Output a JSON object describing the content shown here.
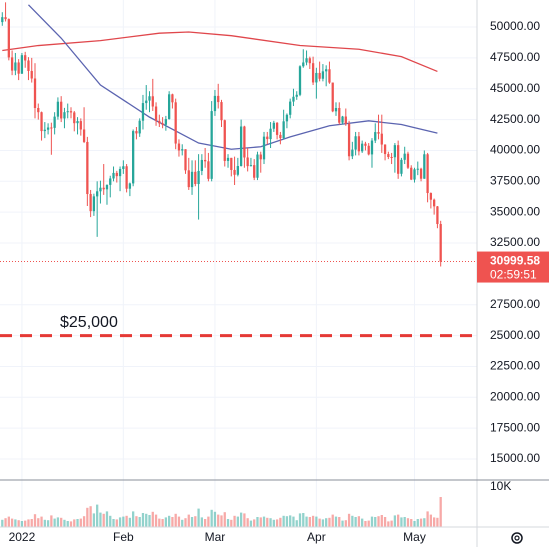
{
  "chart_data": {
    "type": "candlestick",
    "x": [
      -5,
      -4,
      -3,
      -2,
      -1,
      0,
      1,
      2,
      3,
      4,
      5,
      6,
      7,
      8,
      9,
      10,
      11,
      12,
      13,
      14,
      15,
      16,
      17,
      18,
      19,
      20,
      21,
      22,
      23,
      24,
      25,
      26,
      27,
      28,
      29,
      30,
      31,
      32,
      33,
      34,
      35,
      36,
      37,
      38,
      39,
      40,
      41,
      42,
      43,
      44,
      45,
      46,
      47,
      48,
      49,
      50,
      51,
      52,
      53,
      54,
      55,
      56,
      57,
      58,
      59,
      60,
      61,
      62,
      63,
      64,
      65,
      66,
      67,
      68,
      69,
      70,
      71,
      72,
      73,
      74,
      75,
      76,
      77,
      78,
      79,
      80,
      81,
      82,
      83,
      84,
      85,
      86,
      87,
      88,
      89,
      90,
      91,
      92,
      93,
      94,
      95,
      96,
      97,
      98,
      99,
      100,
      101,
      102,
      103,
      104,
      105,
      106,
      107,
      108,
      109,
      110,
      111,
      112,
      113,
      114,
      115,
      116,
      117,
      118,
      119,
      120,
      121,
      122,
      123,
      124,
      125,
      126,
      127,
      128,
      129
    ],
    "open": [
      50400,
      50800,
      50640,
      47540,
      46470,
      47130,
      46220,
      47720,
      47290,
      46440,
      45830,
      43440,
      43100,
      41570,
      41680,
      41860,
      41830,
      42740,
      43950,
      42590,
      43100,
      43180,
      43080,
      42210,
      42380,
      41700,
      40690,
      36470,
      35080,
      36280,
      36690,
      36980,
      36850,
      37210,
      37730,
      38180,
      37920,
      38500,
      38720,
      36900,
      37330,
      41570,
      41380,
      42410,
      43840,
      44040,
      44390,
      43560,
      42400,
      42200,
      42080,
      42540,
      44550,
      43900,
      40560,
      40000,
      40100,
      38390,
      37030,
      38270,
      37280,
      38340,
      39230,
      39120,
      37700,
      43190,
      44420,
      43920,
      42450,
      39150,
      39400,
      38420,
      38030,
      38740,
      41940,
      39430,
      38730,
      38810,
      37790,
      39670,
      39280,
      41120,
      40920,
      41760,
      42240,
      41260,
      41000,
      42360,
      42890,
      43960,
      44350,
      44510,
      46820,
      47130,
      47470,
      47070,
      45510,
      46280,
      45810,
      46410,
      46580,
      45500,
      43170,
      43440,
      42250,
      42750,
      42160,
      39530,
      40070,
      41150,
      39930,
      40550,
      40380,
      39680,
      40800,
      41490,
      41360,
      40480,
      39710,
      39470,
      39450,
      40430,
      38110,
      39240,
      39740,
      38600,
      37640,
      38470,
      38520,
      37710,
      39690,
      36550,
      36010,
      35470,
      34040
    ],
    "high": [
      51200,
      52000,
      50700,
      48100,
      47900,
      47400,
      47900,
      47990,
      47560,
      47500,
      47070,
      43800,
      43150,
      42300,
      42200,
      42250,
      43100,
      44300,
      44400,
      43450,
      43800,
      43500,
      43200,
      42700,
      42600,
      43500,
      41100,
      36800,
      36500,
      37500,
      37550,
      38900,
      37250,
      37950,
      38700,
      38350,
      38700,
      39200,
      38900,
      37400,
      41700,
      41900,
      42600,
      44500,
      45300,
      44800,
      45800,
      43900,
      42900,
      42700,
      42800,
      44800,
      44600,
      44200,
      40900,
      40500,
      40100,
      39400,
      39200,
      39200,
      39700,
      39700,
      40200,
      39800,
      44000,
      44900,
      45400,
      44100,
      42500,
      39700,
      39400,
      39500,
      39400,
      42500,
      42000,
      40200,
      39400,
      39300,
      39900,
      39900,
      41500,
      41500,
      42300,
      42400,
      42300,
      41500,
      43300,
      43000,
      44200,
      45000,
      44800,
      46900,
      48200,
      48100,
      47600,
      47600,
      46700,
      47200,
      47000,
      46900,
      47200,
      45500,
      43900,
      43900,
      42800,
      43400,
      42400,
      40700,
      41500,
      41500,
      40800,
      40700,
      40600,
      41000,
      42200,
      42900,
      42900,
      40500,
      39900,
      39800,
      40600,
      40800,
      39400,
      40300,
      39900,
      38800,
      38600,
      39100,
      38600,
      40000,
      39800,
      36600,
      36100,
      35500,
      34300
    ],
    "low": [
      50100,
      50450,
      47300,
      46100,
      46100,
      45700,
      46200,
      46700,
      45700,
      45500,
      42600,
      42500,
      40800,
      41000,
      41300,
      39650,
      41300,
      42500,
      42300,
      41800,
      42600,
      42600,
      41550,
      41300,
      41200,
      40600,
      35500,
      34600,
      34700,
      33000,
      35700,
      36400,
      35600,
      36200,
      37500,
      37400,
      36700,
      38100,
      36600,
      36300,
      37100,
      40900,
      41100,
      41700,
      43300,
      43100,
      43200,
      42000,
      41900,
      41800,
      41600,
      42500,
      43400,
      40100,
      39500,
      39600,
      38100,
      36800,
      36400,
      37100,
      34400,
      38000,
      38600,
      37500,
      37500,
      42800,
      43400,
      41900,
      38700,
      38600,
      37900,
      37200,
      37900,
      38700,
      38600,
      38300,
      38700,
      37600,
      37600,
      38200,
      38900,
      40500,
      40200,
      41500,
      40900,
      40500,
      40900,
      41800,
      42600,
      43600,
      44100,
      44400,
      46700,
      46900,
      46600,
      45300,
      44200,
      45600,
      45600,
      45200,
      45400,
      43100,
      42800,
      42100,
      42100,
      42000,
      39200,
      39300,
      39600,
      39600,
      39800,
      40000,
      39600,
      38600,
      40600,
      40900,
      39800,
      39200,
      39300,
      38900,
      38200,
      37700,
      37900,
      38900,
      38500,
      37600,
      37400,
      38000,
      37500,
      37700,
      35800,
      35300,
      34800,
      33700,
      30600
    ],
    "close": [
      50800,
      50640,
      47540,
      46470,
      47130,
      46220,
      47720,
      47290,
      46440,
      45830,
      43440,
      43100,
      41570,
      41680,
      41860,
      41830,
      42740,
      43950,
      42590,
      43100,
      43180,
      43080,
      42210,
      42380,
      41700,
      40690,
      36470,
      35080,
      36280,
      36690,
      36980,
      36850,
      37210,
      37730,
      38180,
      37920,
      38500,
      38720,
      36900,
      37330,
      41570,
      41380,
      42410,
      43840,
      44040,
      44390,
      43560,
      42400,
      42200,
      42080,
      42540,
      44550,
      43900,
      40560,
      40000,
      40100,
      38390,
      37030,
      38270,
      37280,
      38340,
      39230,
      39120,
      37700,
      43190,
      44420,
      43920,
      42450,
      39150,
      39400,
      38420,
      38030,
      38740,
      41940,
      39430,
      38730,
      38810,
      37790,
      39670,
      39280,
      41120,
      40920,
      41760,
      42240,
      41260,
      41000,
      42360,
      42890,
      43960,
      44350,
      44510,
      46820,
      47130,
      47470,
      47070,
      45510,
      46280,
      45810,
      46410,
      46580,
      45500,
      43170,
      43440,
      42250,
      42750,
      42160,
      39530,
      40070,
      41150,
      39930,
      40550,
      40380,
      39680,
      40800,
      41490,
      41360,
      40480,
      39710,
      39470,
      39450,
      40430,
      38110,
      39240,
      39740,
      38600,
      37640,
      38470,
      38520,
      37710,
      39690,
      36550,
      36010,
      35470,
      34040,
      30999.58
    ],
    "up_color": "#26a69a",
    "down_color": "#ef5350",
    "series": [
      {
        "color": "#e0474c",
        "x": [
          -5,
          6,
          25,
          43,
          52,
          65,
          86,
          104,
          117,
          128
        ],
        "values": [
          48100,
          48500,
          48900,
          49500,
          49600,
          49300,
          48500,
          48200,
          47600,
          46400
        ]
      },
      {
        "color": "#5b64b0",
        "x": [
          3,
          13,
          25,
          40,
          55,
          65,
          74,
          83,
          95,
          107,
          117,
          128
        ],
        "values": [
          51800,
          49100,
          45300,
          42700,
          40600,
          40100,
          40300,
          41100,
          42000,
          42400,
          42100,
          41400
        ]
      }
    ],
    "volume": {
      "values": [
        1800,
        2200,
        2600,
        2100,
        1900,
        1700,
        1500,
        1600,
        1900,
        2000,
        3200,
        2200,
        2600,
        1800,
        1700,
        2900,
        2100,
        2400,
        2300,
        1800,
        1500,
        1400,
        1900,
        2000,
        2100,
        2700,
        4800,
        5200,
        3400,
        5600,
        3600,
        3300,
        3900,
        2800,
        2000,
        1900,
        2400,
        2600,
        2800,
        2300,
        3900,
        2700,
        2500,
        3500,
        3300,
        3000,
        3800,
        3100,
        2100,
        2000,
        2400,
        2800,
        2500,
        3300,
        2600,
        1800,
        2200,
        3100,
        2500,
        2700,
        4600,
        2400,
        2000,
        2600,
        4300,
        3800,
        3100,
        2900,
        3700,
        2000,
        1800,
        2800,
        2600,
        3600,
        3400,
        2200,
        1600,
        1900,
        2500,
        2400,
        2600,
        2300,
        2200,
        1800,
        1900,
        2300,
        2800,
        2700,
        2900,
        2600,
        1700,
        3400,
        3500,
        2600,
        2500,
        2800,
        2600,
        2100,
        1900,
        2200,
        2300,
        3100,
        2600,
        2500,
        1600,
        1700,
        3300,
        2800,
        2500,
        2700,
        2100,
        1500,
        1600,
        2600,
        2500,
        2700,
        3000,
        2500,
        1400,
        1600,
        2900,
        3100,
        2400,
        2500,
        2200,
        2000,
        1500,
        2000,
        2100,
        2200,
        3900,
        3100,
        2400,
        2300,
        7500
      ],
      "ylim": [
        0,
        11750
      ],
      "yticks": [
        {
          "value": 10000,
          "label": "10K"
        }
      ]
    },
    "hline": {
      "value": 25000,
      "label": "$25,000",
      "color": "#e53935"
    },
    "countdown": "02:59:51",
    "xlim": [
      -5.7,
      140.1
    ],
    "xticks": [
      {
        "value": 1,
        "label": "2022"
      },
      {
        "value": 32,
        "label": "Feb"
      },
      {
        "value": 60,
        "label": "Mar"
      },
      {
        "value": 91,
        "label": "Apr"
      },
      {
        "value": 121,
        "label": "May"
      }
    ],
    "ylim": [
      13300,
      52190
    ],
    "yticks": [
      {
        "value": 50000,
        "label": "50000.00"
      },
      {
        "value": 47500,
        "label": "47500.00"
      },
      {
        "value": 45000,
        "label": "45000.00"
      },
      {
        "value": 42500,
        "label": "42500.00"
      },
      {
        "value": 40000,
        "label": "40000.00"
      },
      {
        "value": 37500,
        "label": "37500.00"
      },
      {
        "value": 35000,
        "label": "35000.00"
      },
      {
        "value": 32500,
        "label": "32500.00"
      },
      {
        "value": 27500,
        "label": "27500.00"
      },
      {
        "value": 25000,
        "label": "25000.00"
      },
      {
        "value": 22500,
        "label": "22500.00"
      },
      {
        "value": 20000,
        "label": "20000.00"
      },
      {
        "value": 17500,
        "label": "17500.00"
      },
      {
        "value": 15000,
        "label": "15000.00"
      }
    ],
    "grid": true
  }
}
